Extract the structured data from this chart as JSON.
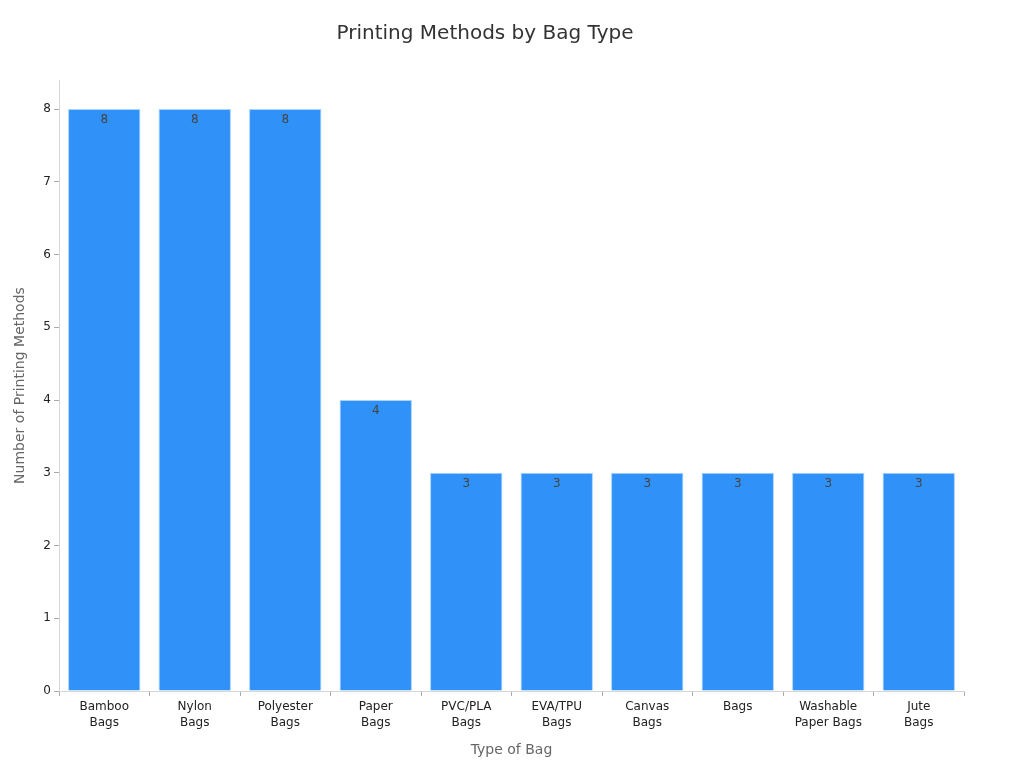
{
  "chart_data": {
    "type": "bar",
    "title": "Printing Methods by Bag Type",
    "xlabel": "Type of Bag",
    "ylabel": "Number of Printing Methods",
    "categories": [
      "Bamboo Bags",
      "Nylon Bags",
      "Polyester Bags",
      "Paper Bags",
      "PVC/PLA Bags",
      "EVA/TPU Bags",
      "Canvas Bags",
      "Bags",
      "Washable Paper Bags",
      "Jute Bags"
    ],
    "values": [
      8,
      8,
      8,
      4,
      3,
      3,
      3,
      3,
      3,
      3
    ],
    "color": "#3092f8",
    "ylim": [
      0,
      8.4
    ],
    "yticks": [
      0,
      1,
      2,
      3,
      4,
      5,
      6,
      7,
      8
    ],
    "grid": false,
    "legend": false,
    "data_labels": true
  }
}
